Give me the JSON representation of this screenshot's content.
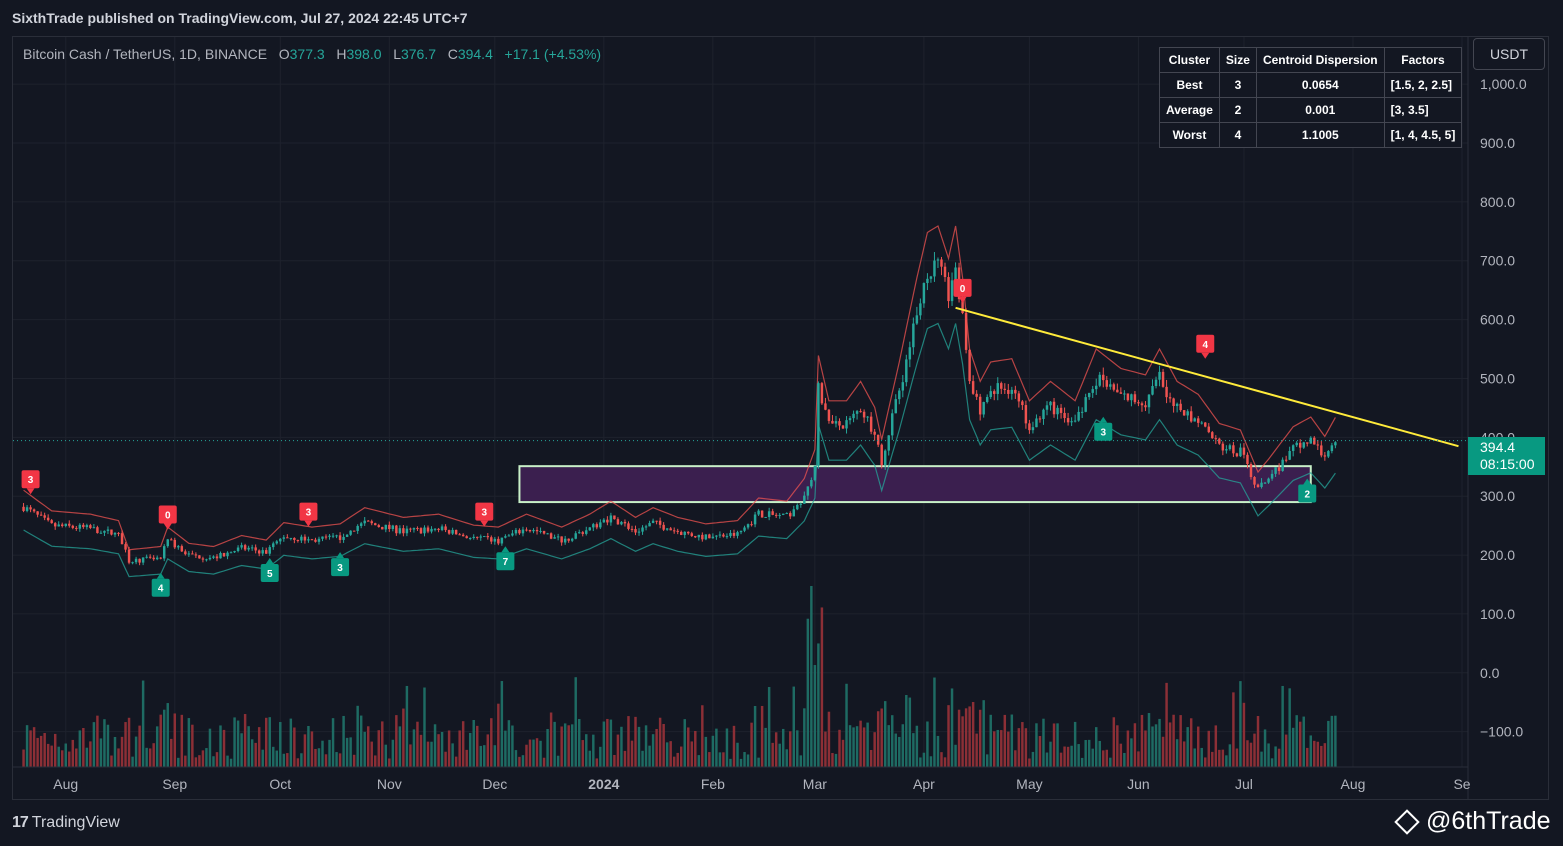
{
  "header": {
    "published": "SixthTrade published on TradingView.com, Jul 27, 2024 22:45 UTC+7"
  },
  "legend": {
    "symbol": "Bitcoin Cash / TetherUS, 1D, BINANCE",
    "o_label": "O",
    "o_value": "377.3",
    "h_label": "H",
    "h_value": "398.0",
    "l_label": "L",
    "l_value": "376.7",
    "c_label": "C",
    "c_value": "394.4",
    "change": "+17.1 (+4.53%)"
  },
  "currency": "USDT",
  "price_tag": {
    "price": "394.4",
    "countdown": "08:15:00"
  },
  "cluster_table": {
    "headers": [
      "Cluster",
      "Size",
      "Centroid Dispersion",
      "Factors"
    ],
    "rows": [
      [
        "Best",
        "3",
        "0.0654",
        "[1.5, 2, 2.5]"
      ],
      [
        "Average",
        "2",
        "0.001",
        "[3, 3.5]"
      ],
      [
        "Worst",
        "4",
        "1.1005",
        "[1, 4, 4.5, 5]"
      ]
    ]
  },
  "footer": {
    "brand": "TradingView",
    "handle": "@6thTrade"
  },
  "colors": {
    "up": "#26a69a",
    "down": "#ef5350",
    "trendline": "#ffeb3b",
    "zone_fill": "#3b1f4f",
    "zone_border": "#c8f0c8",
    "trail_bear": "#ef5350",
    "trail_bull": "#26a69a",
    "volume_up": "#1e6b63",
    "volume_down": "#8c2f36"
  },
  "chart_data": {
    "type": "candlestick",
    "y_ticks": [
      "1,000.0",
      "900.0",
      "800.0",
      "700.0",
      "600.0",
      "500.0",
      "400.0",
      "300.0",
      "200.0",
      "100.0",
      "0.0",
      "−100.0"
    ],
    "y_tick_values": [
      1000,
      900,
      800,
      700,
      600,
      500,
      400,
      300,
      200,
      100,
      0,
      -100
    ],
    "x_ticks": [
      "Aug",
      "Sep",
      "Oct",
      "Nov",
      "Dec",
      "2024",
      "Feb",
      "Mar",
      "Apr",
      "May",
      "Jun",
      "Jul",
      "Aug",
      "Se"
    ],
    "x_tick_dates": [
      "2023-08-01",
      "2023-09-01",
      "2023-10-01",
      "2023-11-01",
      "2023-12-01",
      "2024-01-01",
      "2024-02-01",
      "2024-03-01",
      "2024-04-01",
      "2024-05-01",
      "2024-06-01",
      "2024-07-01",
      "2024-08-01",
      "2024-09-01"
    ],
    "ylim": [
      -160,
      1080
    ],
    "close_path": [
      [
        "2023-07-20",
        282
      ],
      [
        "2023-07-28",
        250
      ],
      [
        "2023-08-08",
        245
      ],
      [
        "2023-08-16",
        235
      ],
      [
        "2023-08-19",
        190
      ],
      [
        "2023-08-28",
        195
      ],
      [
        "2023-08-30",
        225
      ],
      [
        "2023-09-05",
        200
      ],
      [
        "2023-09-12",
        195
      ],
      [
        "2023-09-20",
        212
      ],
      [
        "2023-09-27",
        205
      ],
      [
        "2023-10-02",
        232
      ],
      [
        "2023-10-10",
        225
      ],
      [
        "2023-10-18",
        230
      ],
      [
        "2023-10-25",
        255
      ],
      [
        "2023-11-05",
        240
      ],
      [
        "2023-11-15",
        245
      ],
      [
        "2023-11-25",
        228
      ],
      [
        "2023-12-02",
        225
      ],
      [
        "2023-12-10",
        245
      ],
      [
        "2023-12-20",
        225
      ],
      [
        "2023-12-28",
        245
      ],
      [
        "2024-01-03",
        265
      ],
      [
        "2024-01-10",
        240
      ],
      [
        "2024-01-15",
        255
      ],
      [
        "2024-01-22",
        240
      ],
      [
        "2024-01-30",
        230
      ],
      [
        "2024-02-08",
        235
      ],
      [
        "2024-02-14",
        270
      ],
      [
        "2024-02-22",
        265
      ],
      [
        "2024-02-27",
        300
      ],
      [
        "2024-03-01",
        345
      ],
      [
        "2024-03-02",
        490
      ],
      [
        "2024-03-05",
        420
      ],
      [
        "2024-03-10",
        420
      ],
      [
        "2024-03-14",
        450
      ],
      [
        "2024-03-18",
        410
      ],
      [
        "2024-03-20",
        360
      ],
      [
        "2024-03-25",
        480
      ],
      [
        "2024-03-30",
        610
      ],
      [
        "2024-04-02",
        680
      ],
      [
        "2024-04-05",
        690
      ],
      [
        "2024-04-08",
        640
      ],
      [
        "2024-04-10",
        690
      ],
      [
        "2024-04-12",
        610
      ],
      [
        "2024-04-14",
        500
      ],
      [
        "2024-04-17",
        450
      ],
      [
        "2024-04-20",
        480
      ],
      [
        "2024-04-26",
        485
      ],
      [
        "2024-05-01",
        420
      ],
      [
        "2024-05-07",
        450
      ],
      [
        "2024-05-14",
        420
      ],
      [
        "2024-05-20",
        500
      ],
      [
        "2024-05-27",
        470
      ],
      [
        "2024-06-03",
        460
      ],
      [
        "2024-06-07",
        500
      ],
      [
        "2024-06-12",
        450
      ],
      [
        "2024-06-18",
        430
      ],
      [
        "2024-06-24",
        385
      ],
      [
        "2024-06-30",
        375
      ],
      [
        "2024-07-05",
        310
      ],
      [
        "2024-07-08",
        330
      ],
      [
        "2024-07-15",
        380
      ],
      [
        "2024-07-20",
        395
      ],
      [
        "2024-07-24",
        365
      ],
      [
        "2024-07-27",
        394.4
      ]
    ],
    "resistance_zone": {
      "from": "2023-12-08",
      "to": "2024-07-20",
      "low": 290,
      "high": 351
    },
    "trendline": {
      "from_date": "2024-04-10",
      "from_price": 620,
      "to_date": "2024-08-31",
      "to_price": 385
    },
    "labels": [
      {
        "text": "3",
        "date": "2023-07-22",
        "price": 300,
        "kind": "bear"
      },
      {
        "text": "0",
        "date": "2023-08-30",
        "price": 240,
        "kind": "bear"
      },
      {
        "text": "3",
        "date": "2023-10-09",
        "price": 245,
        "kind": "bear"
      },
      {
        "text": "3",
        "date": "2023-11-28",
        "price": 245,
        "kind": "bear"
      },
      {
        "text": "0",
        "date": "2024-04-12",
        "price": 625,
        "kind": "bear"
      },
      {
        "text": "4",
        "date": "2024-06-20",
        "price": 530,
        "kind": "bear"
      },
      {
        "text": "4",
        "date": "2023-08-28",
        "price": 170,
        "kind": "bull"
      },
      {
        "text": "5",
        "date": "2023-09-28",
        "price": 195,
        "kind": "bull"
      },
      {
        "text": "3",
        "date": "2023-10-18",
        "price": 205,
        "kind": "bull"
      },
      {
        "text": "7",
        "date": "2023-12-04",
        "price": 215,
        "kind": "bull"
      },
      {
        "text": "3",
        "date": "2024-05-22",
        "price": 435,
        "kind": "bull"
      },
      {
        "text": "2",
        "date": "2024-07-19",
        "price": 330,
        "kind": "bull"
      }
    ]
  }
}
